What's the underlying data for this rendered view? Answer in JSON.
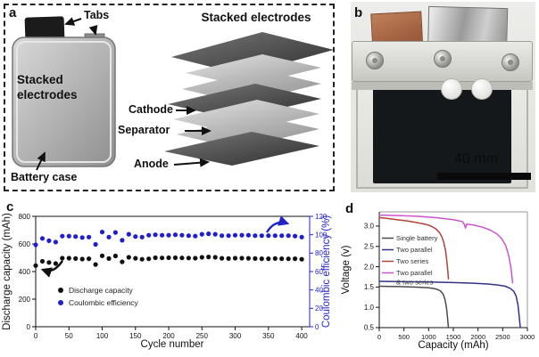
{
  "figure": {
    "panel_labels": {
      "a": "a",
      "b": "b",
      "c": "c",
      "d": "d"
    }
  },
  "panel_a": {
    "tabs_label": "Tabs",
    "body_label": "Stacked electrodes",
    "stack_title": "Stacked electrodes",
    "battery_case_label": "Battery case",
    "cathode_label": "Cathode",
    "separator_label": "Separator",
    "anode_label": "Anode"
  },
  "panel_b": {
    "scale_bar_label": "40 mm"
  },
  "chart_data": [
    {
      "id": "cycling",
      "type": "scatter",
      "xlabel": "Cycle number",
      "ylabel_left": "Discharge capacity (mAh)",
      "ylabel_right": "Coulombic efficiency (%)",
      "xlim": [
        0,
        412
      ],
      "xticks": [
        0,
        50,
        100,
        150,
        200,
        250,
        300,
        350,
        400
      ],
      "ylim_left": [
        0,
        800
      ],
      "yticks_left": [
        0,
        200,
        400,
        600,
        800
      ],
      "ylim_right": [
        0,
        120
      ],
      "yticks_right": [
        0,
        20,
        40,
        60,
        80,
        100,
        120
      ],
      "axis_color_left": "#111111",
      "axis_color_right": "#2222cc",
      "grid": false,
      "legend_position": "lower-left-inside",
      "series": [
        {
          "name": "Discharge capacity",
          "axis": "left",
          "color": "#111111",
          "x": [
            0,
            10,
            20,
            30,
            40,
            50,
            60,
            70,
            80,
            90,
            100,
            110,
            120,
            130,
            140,
            150,
            160,
            170,
            180,
            190,
            200,
            210,
            220,
            230,
            240,
            250,
            260,
            270,
            280,
            290,
            300,
            310,
            320,
            330,
            340,
            350,
            360,
            370,
            380,
            390,
            400
          ],
          "y": [
            443,
            474,
            466,
            458,
            497,
            497,
            494,
            490,
            493,
            451,
            514,
            494,
            513,
            470,
            503,
            496,
            489,
            492,
            500,
            499,
            500,
            500,
            499,
            498,
            497,
            503,
            506,
            503,
            496,
            494,
            497,
            497,
            496,
            494,
            493,
            493,
            494,
            493,
            492,
            493,
            489
          ]
        },
        {
          "name": "Coulombic efficiency",
          "axis": "right",
          "color": "#1f1fce",
          "x": [
            0,
            10,
            20,
            30,
            40,
            50,
            60,
            70,
            80,
            90,
            100,
            110,
            120,
            130,
            140,
            150,
            160,
            170,
            180,
            190,
            200,
            210,
            220,
            230,
            240,
            250,
            260,
            270,
            280,
            290,
            300,
            310,
            320,
            330,
            340,
            350,
            360,
            370,
            380,
            390,
            400
          ],
          "y": [
            89,
            96,
            93.5,
            92,
            98.5,
            98.5,
            98,
            97,
            97.5,
            89.5,
            103,
            97.5,
            102.5,
            94,
            100.5,
            98,
            97.5,
            99.5,
            100,
            99.5,
            99.5,
            100,
            99.5,
            99,
            98.5,
            100.5,
            101,
            100.5,
            99,
            99,
            99.5,
            99.5,
            99.5,
            99,
            99,
            99,
            99,
            99,
            99,
            98.5,
            97.5
          ]
        }
      ]
    },
    {
      "id": "discharge",
      "type": "line",
      "xlabel": "Capacity (mAh)",
      "ylabel": "Voltage (v)",
      "xlim": [
        0,
        3000
      ],
      "xticks": [
        0,
        500,
        1000,
        1500,
        2000,
        2500,
        3000
      ],
      "ylim": [
        0.5,
        3.35
      ],
      "yticks": [
        0.5,
        1.0,
        1.5,
        2.0,
        2.5,
        3.0
      ],
      "grid": false,
      "legend_position": "center-left-inside",
      "series": [
        {
          "name": "Single battery",
          "color": "#4a4a4a",
          "legend": [
            "Single battery"
          ],
          "points": [
            [
              0,
              1.52
            ],
            [
              200,
              1.515
            ],
            [
              400,
              1.51
            ],
            [
              600,
              1.505
            ],
            [
              800,
              1.495
            ],
            [
              1000,
              1.48
            ],
            [
              1100,
              1.465
            ],
            [
              1180,
              1.44
            ],
            [
              1240,
              1.4
            ],
            [
              1290,
              1.33
            ],
            [
              1330,
              1.2
            ],
            [
              1360,
              1.0
            ],
            [
              1385,
              0.72
            ],
            [
              1400,
              0.5
            ]
          ]
        },
        {
          "name": "Two parallel",
          "color": "#333388",
          "legend": [
            "Two parallel"
          ],
          "points": [
            [
              0,
              1.64
            ],
            [
              300,
              1.635
            ],
            [
              700,
              1.63
            ],
            [
              1100,
              1.62
            ],
            [
              1500,
              1.61
            ],
            [
              1900,
              1.595
            ],
            [
              2200,
              1.575
            ],
            [
              2400,
              1.55
            ],
            [
              2550,
              1.52
            ],
            [
              2650,
              1.47
            ],
            [
              2720,
              1.4
            ],
            [
              2770,
              1.28
            ],
            [
              2810,
              1.05
            ],
            [
              2840,
              0.72
            ],
            [
              2855,
              0.5
            ]
          ]
        },
        {
          "name": "Two series",
          "color": "#b2423a",
          "legend": [
            "Two series"
          ],
          "points": [
            [
              0,
              3.21
            ],
            [
              150,
              3.19
            ],
            [
              350,
              3.16
            ],
            [
              550,
              3.13
            ],
            [
              750,
              3.09
            ],
            [
              950,
              3.04
            ],
            [
              1050,
              3.0
            ],
            [
              1150,
              2.93
            ],
            [
              1220,
              2.84
            ],
            [
              1270,
              2.73
            ],
            [
              1310,
              2.58
            ],
            [
              1345,
              2.38
            ],
            [
              1370,
              2.12
            ],
            [
              1390,
              1.88
            ],
            [
              1400,
              1.7
            ]
          ]
        },
        {
          "name": "Two parallel & two series",
          "color": "#cc55cc",
          "legend": [
            "Two parallel",
            "& two series"
          ],
          "points": [
            [
              0,
              3.27
            ],
            [
              400,
              3.26
            ],
            [
              800,
              3.24
            ],
            [
              1200,
              3.2
            ],
            [
              1500,
              3.16
            ],
            [
              1680,
              3.11
            ],
            [
              1720,
              3.05
            ],
            [
              1745,
              2.95
            ],
            [
              1770,
              3.05
            ],
            [
              1900,
              3.03
            ],
            [
              2100,
              2.97
            ],
            [
              2250,
              2.9
            ],
            [
              2380,
              2.81
            ],
            [
              2480,
              2.69
            ],
            [
              2560,
              2.52
            ],
            [
              2620,
              2.28
            ],
            [
              2660,
              2.02
            ],
            [
              2685,
              1.78
            ],
            [
              2700,
              1.6
            ]
          ]
        }
      ]
    }
  ]
}
